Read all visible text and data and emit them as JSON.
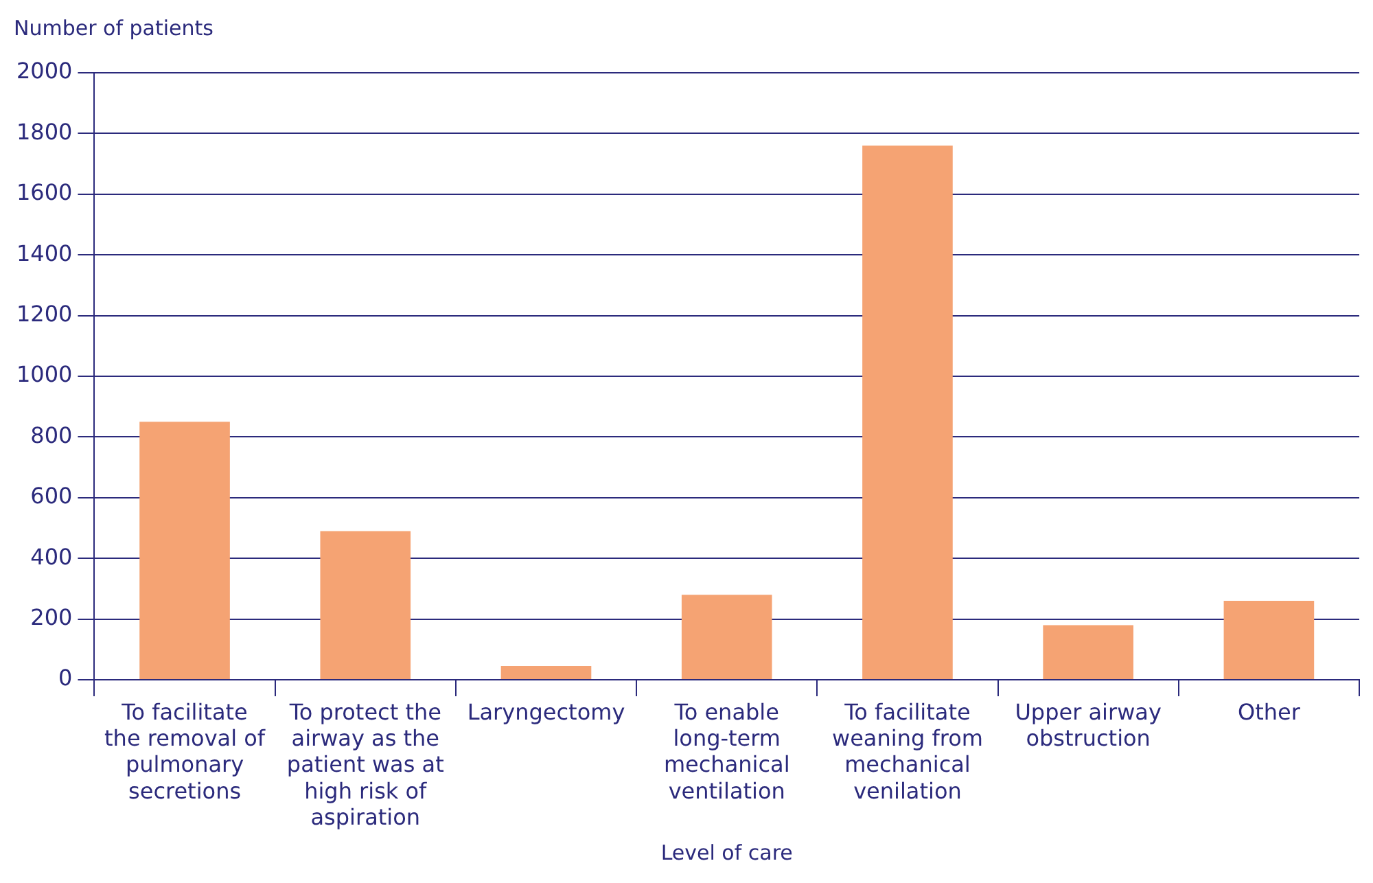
{
  "chart_data": {
    "type": "bar",
    "ylabel": "Number of patients",
    "xlabel": "Level of care",
    "categories": [
      "To facilitate the removal of pulmonary secretions",
      "To protect the airway as the patient was at high risk of aspiration",
      "Laryngectomy",
      "To enable long-term mechanical ventilation",
      "To facilitate weaning from mechanical venilation",
      "Upper airway obstruction",
      "Other"
    ],
    "values": [
      850,
      490,
      45,
      280,
      1760,
      180,
      260
    ],
    "color": "#f5a373",
    "ylim": [
      0,
      2000
    ],
    "yticks": [
      0,
      200,
      400,
      600,
      800,
      1000,
      1200,
      1400,
      1600,
      1800,
      2000
    ],
    "grid": "y",
    "legend": false
  }
}
